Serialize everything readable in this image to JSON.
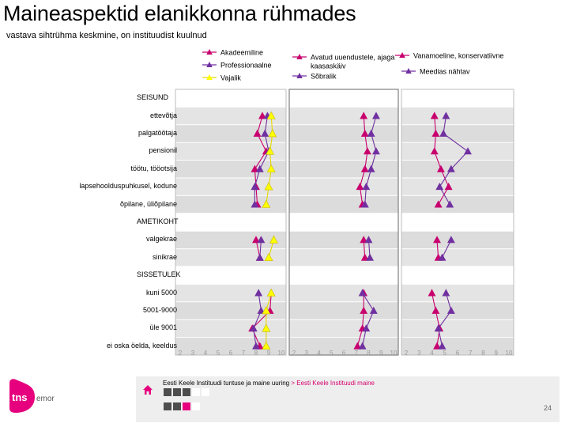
{
  "title": "Maineaspektid elanikkonna rühmades",
  "subtitle": "vastava sihtrühma keskmine, on instituudist kuulnud",
  "chart_data": {
    "type": "line",
    "orientation": "horizontal-dot-plot",
    "legend": [
      {
        "name": "Akadeemiline",
        "color": "#c8006e"
      },
      {
        "name": "Professionaalne",
        "color": "#7030a0"
      },
      {
        "name": "Vajalik",
        "color": "#ffff00"
      },
      {
        "name": "Avatud uuendustele, ajaga kaasaskäiv",
        "color": "#c8006e"
      },
      {
        "name": "Sõbralik",
        "color": "#7030a0"
      },
      {
        "name": "Vanamoeline, konservatiivne",
        "color": "#c8006e"
      },
      {
        "name": "Meedias nähtav",
        "color": "#7030a0"
      }
    ],
    "panels": [
      {
        "xlim": [
          2,
          10
        ],
        "ticks": [
          "2",
          "3",
          "4",
          "5",
          "6",
          "7",
          "8",
          "9",
          "10"
        ],
        "series": [
          "Akadeemiline",
          "Professionaalne",
          "Vajalik"
        ]
      },
      {
        "xlim": [
          2,
          10
        ],
        "ticks": [
          "2",
          "3",
          "4",
          "5",
          "6",
          "7",
          "8",
          "9",
          "10"
        ],
        "series": [
          "Avatud uuendustele, ajaga kaasaskäiv",
          "Sõbralik"
        ]
      },
      {
        "xlim": [
          2,
          10
        ],
        "ticks": [
          "2",
          "3",
          "4",
          "5",
          "6",
          "7",
          "8",
          "9",
          "10"
        ],
        "series": [
          "Vanamoeline, konservatiivne",
          "Meedias nähtav"
        ]
      }
    ],
    "rows": [
      {
        "label": "SEISUND",
        "section": true
      },
      {
        "label": "ettevõtja",
        "values": [
          8.5,
          8.9,
          9.2,
          7.6,
          8.6,
          4.2,
          5.1
        ]
      },
      {
        "label": "palgatöötaja",
        "values": [
          8.1,
          8.7,
          9.3,
          7.7,
          8.2,
          4.3,
          4.9
        ]
      },
      {
        "label": "pensionil",
        "values": [
          8.8,
          9.0,
          9.1,
          7.9,
          8.6,
          4.2,
          6.8
        ]
      },
      {
        "label": "töötu, tööotsija",
        "values": [
          7.9,
          8.3,
          9.2,
          7.7,
          8.2,
          4.7,
          5.5
        ]
      },
      {
        "label": "lapsehoolduspuhkusel, kodune",
        "values": [
          8.0,
          7.9,
          9.0,
          7.3,
          7.8,
          5.3,
          4.6
        ]
      },
      {
        "label": "õpilane, üliõpilane",
        "values": [
          8.1,
          7.9,
          8.8,
          7.5,
          7.7,
          4.5,
          5.4
        ]
      },
      {
        "label": "AMETIKOHT",
        "section": true
      },
      {
        "label": "valgekrae",
        "values": [
          8.0,
          8.4,
          9.4,
          7.6,
          8.0,
          4.4,
          5.5
        ]
      },
      {
        "label": "sinikrae",
        "values": [
          8.3,
          8.3,
          9.0,
          7.7,
          8.1,
          4.5,
          4.8
        ]
      },
      {
        "label": "SISSETULEK",
        "section": true
      },
      {
        "label": "kuni 5000",
        "values": [
          9.2,
          8.2,
          9.2,
          7.6,
          7.5,
          4.0,
          5.1
        ]
      },
      {
        "label": "5001-9000",
        "values": [
          9.1,
          8.4,
          8.8,
          7.6,
          8.4,
          4.3,
          5.5
        ]
      },
      {
        "label": "üle 9001",
        "values": [
          7.7,
          7.8,
          8.8,
          7.5,
          7.8,
          4.6,
          4.5
        ]
      },
      {
        "label": "ei oska öelda, keeldus",
        "values": [
          8.3,
          8.0,
          8.8,
          7.1,
          7.5,
          4.4,
          4.8
        ]
      }
    ]
  },
  "footer": {
    "source_text": "Eesti Keele Instituudi tuntuse ja maine uuring",
    "link_text": "> Eesti Keele Instituudi maine",
    "page_number": "24",
    "logo_text": "tns",
    "logo_sub": "emor"
  },
  "colors": {
    "magenta": "#c8006e",
    "purple": "#7030a0",
    "yellow": "#ffff00",
    "band": "#dcdcdc",
    "nav_active": "#e6007e",
    "nav_dark": "#4d4d4d"
  }
}
